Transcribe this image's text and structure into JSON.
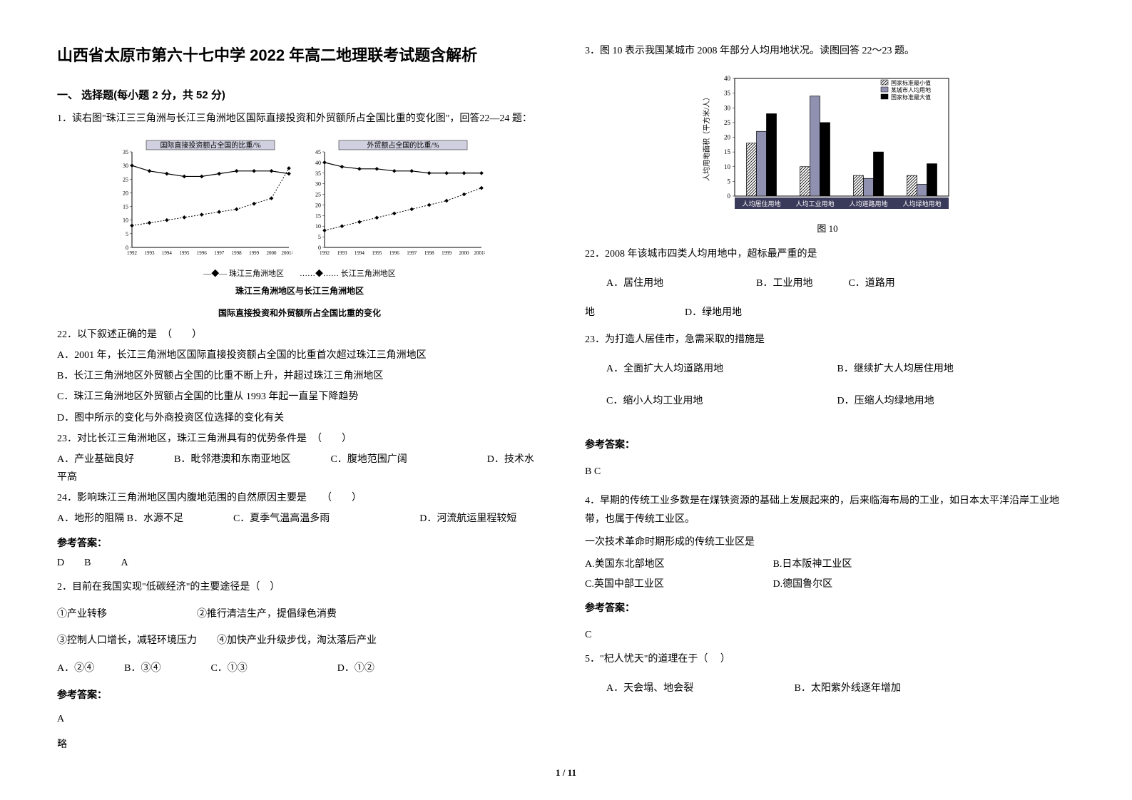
{
  "title": "山西省太原市第六十七中学 2022 年高二地理联考试题含解析",
  "section1": {
    "header": "一、 选择题(每小题 2 分，共 52 分)"
  },
  "q1": {
    "stem": "1．读右图\"珠江三三角洲与长江三角洲地区国际直接投资和外贸额所占全国比重的变化图\"，回答22—24 题：",
    "chart1_title": "国际直接投资额占全国的比重/%",
    "chart2_title": "外贸额占全国的比重/%",
    "legend": "—◆— 珠江三角洲地区　　……◆…… 长江三角洲地区",
    "caption1": "珠江三角洲地区与长江三角洲地区",
    "caption2": "国际直接投资和外贸额所占全国比重的变化",
    "years": [
      "1992",
      "1993",
      "1994",
      "1995",
      "1996",
      "1997",
      "1998",
      "1999",
      "2000",
      "2001年"
    ],
    "chart1": {
      "ymax": 35,
      "ystep": 5,
      "series1": [
        30,
        28,
        27,
        26,
        26,
        27,
        28,
        28,
        28,
        27
      ],
      "series2": [
        8,
        9,
        10,
        11,
        12,
        13,
        14,
        16,
        18,
        29
      ],
      "line_color": "#000000",
      "bg": "#ffffff"
    },
    "chart2": {
      "ymax": 45,
      "ystep": 5,
      "series1": [
        40,
        38,
        37,
        37,
        36,
        36,
        35,
        35,
        35,
        35
      ],
      "series2": [
        8,
        10,
        12,
        14,
        16,
        18,
        20,
        22,
        25,
        28
      ],
      "line_color": "#000000",
      "bg": "#ffffff"
    },
    "sq22": "22．以下叙述正确的是　（　　）",
    "sq22a": "A．2001 年，长江三角洲地区国际直接投资额占全国的比重首次超过珠江三角洲地区",
    "sq22b": "B．长江三角洲地区外贸额占全国的比重不断上升，并超过珠江三角洲地区",
    "sq22c": "C．珠江三角洲地区外贸额占全国的比重从 1993 年起一直呈下降趋势",
    "sq22d": "D．图中所示的变化与外商投资区位选择的变化有关",
    "sq23": "23．对比长江三角洲地区，珠江三角洲具有的优势条件是　（　　）",
    "sq23opts": "A．产业基础良好　　　　B．毗邻港澳和东南亚地区　　　　C．腹地范围广阔　　　　　　　　D．技术水平高",
    "sq24": "24．影响珠江三角洲地区国内腹地范围的自然原因主要是　　（　　）",
    "sq24opts": "A．地形的阻隔 B．水源不足　　　　　C．夏季气温高温多雨　　　　　　　　　D．河流航运里程较短",
    "answer_label": "参考答案：",
    "answer": "D　　B　　　A"
  },
  "q2": {
    "stem": "2．目前在我国实现\"低碳经济\"的主要途径是（　）",
    "line1": "①产业转移　　　　　　　　　②推行清洁生产，提倡绿色消费",
    "line2": "③控制人口增长，减轻环境压力　　④加快产业升级步伐，淘汰落后产业",
    "opts": "A．②④　　　B．③④　　　　　C．①③　　　　　　　　　D．①②",
    "answer_label": "参考答案：",
    "answer": "A",
    "note": "略"
  },
  "q3": {
    "stem": "3．图 10 表示我国某城市 2008 年部分人均用地状况。读图回答 22～23 题。",
    "chart": {
      "ylabel": "人均用地面积（平方米/人）",
      "ymax": 40,
      "ystep": 5,
      "categories": [
        "人均居住用地",
        "人均工业用地",
        "人均道路用地",
        "人均绿地用地"
      ],
      "series_min": [
        18,
        10,
        7,
        7
      ],
      "series_city": [
        22,
        34,
        6,
        4
      ],
      "series_max": [
        28,
        25,
        15,
        11
      ],
      "legend": [
        "国家标准最小值",
        "某城市人均用地",
        "国家标准最大值"
      ],
      "colors": {
        "min_fill": "#ffffff",
        "min_pattern": "hatch",
        "city_fill": "#9090b0",
        "max_fill": "#000000",
        "border": "#000000",
        "bg": "#ffffff"
      }
    },
    "chart_caption": "图 10",
    "sq22": "22．2008 年该城市四类人均用地中，超标最严重的是",
    "sq22_a": "A．居住用地",
    "sq22_b": "B．工业用地",
    "sq22_c": "C．道路用",
    "sq22_cont": "地　　　　　　　　　D．绿地用地",
    "sq23": "23．为打造人居佳市，急需采取的措施是",
    "sq23_a": "A．全面扩大人均道路用地",
    "sq23_b": "B．继续扩大人均居住用地",
    "sq23_c": "C．缩小人均工业用地",
    "sq23_d": "D．压缩人均绿地用地",
    "answer_label": "参考答案：",
    "answer": "B  C"
  },
  "q4": {
    "stem1": "4．早期的传统工业多数是在煤铁资源的基础上发展起来的，后来临海布局的工业，如日本太平洋沿岸工业地带，也属于传统工业区。",
    "stem2": "一次技术革命时期形成的传统工业区是",
    "opt_a": "A.美国东北部地区",
    "opt_b": "B.日本阪神工业区",
    "opt_c": "C.英国中部工业区",
    "opt_d": "D.德国鲁尔区",
    "answer_label": "参考答案：",
    "answer": "C"
  },
  "q5": {
    "stem": "5．\"杞人忧天\"的道理在于（　 ）",
    "opt_a": "A．天会塌、地会裂",
    "opt_b": "B．太阳紫外线逐年增加"
  },
  "page_number": "1 / 11"
}
